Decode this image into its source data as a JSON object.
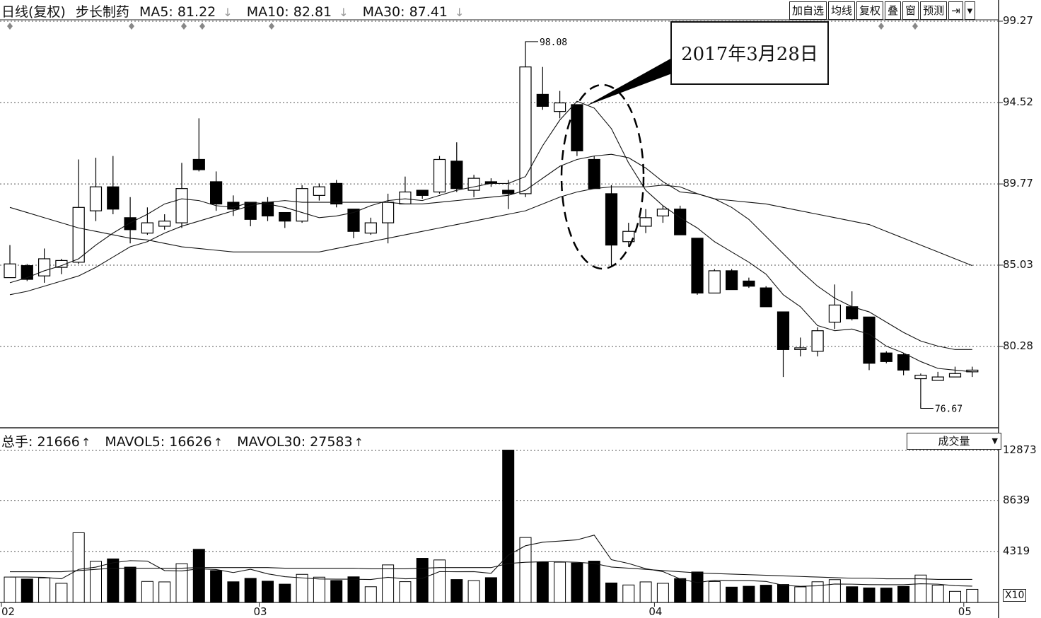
{
  "header": {
    "period": "日线(复权)",
    "stock": "步长制药",
    "ma5_label": "MA5: 81.22",
    "ma10_label": "MA10: 82.81",
    "ma30_label": "MA30: 87.41",
    "arrow": "↓"
  },
  "toolbar": [
    "加自选",
    "均线",
    "复权",
    "叠",
    "窗",
    "预测",
    "⇥",
    "▾"
  ],
  "annotation": {
    "text": "2017年3月28日"
  },
  "volume_header": {
    "total_label": "总手: 21666",
    "mavol5_label": "MAVOL5: 16626",
    "mavol30_label": "MAVOL30: 27583",
    "arrow": "↑",
    "indicator_select": "成交量"
  },
  "chart_data": {
    "type": "candlestick",
    "price_ticks": [
      "99.27",
      "94.52",
      "89.77",
      "85.03",
      "80.28"
    ],
    "price_range": [
      76.0,
      99.27
    ],
    "volume_ticks": [
      "12873",
      "8639",
      "4319"
    ],
    "volume_unit": "X10",
    "volume_range": [
      0,
      12873
    ],
    "x_labels": [
      {
        "index": 0,
        "label": "02"
      },
      {
        "index": 15,
        "label": "03"
      },
      {
        "index": 38,
        "label": "04"
      },
      {
        "index": 56,
        "label": "05"
      }
    ],
    "high_annotation": {
      "index": 30,
      "value": "98.08"
    },
    "low_annotation": {
      "index": 53,
      "value": "76.67"
    },
    "candles": [
      [
        84.3,
        85.1,
        86.2,
        84.4
      ],
      [
        85.0,
        84.2,
        85.1,
        84.1
      ],
      [
        84.4,
        85.4,
        86.0,
        84.0
      ],
      [
        84.9,
        85.3,
        85.4,
        84.5
      ],
      [
        85.2,
        88.4,
        91.2,
        85.1
      ],
      [
        88.2,
        89.6,
        91.3,
        87.6
      ],
      [
        89.6,
        88.3,
        91.4,
        88.0
      ],
      [
        87.8,
        87.1,
        89.0,
        86.3
      ],
      [
        86.9,
        87.5,
        88.4,
        86.8
      ],
      [
        87.3,
        87.6,
        88.0,
        87.1
      ],
      [
        87.5,
        89.5,
        91.0,
        87.2
      ],
      [
        91.2,
        90.6,
        93.6,
        90.5
      ],
      [
        89.9,
        88.6,
        90.5,
        88.2
      ],
      [
        88.7,
        88.3,
        89.1,
        87.9
      ],
      [
        88.7,
        87.7,
        88.7,
        87.3
      ],
      [
        88.7,
        87.9,
        89.0,
        87.6
      ],
      [
        88.1,
        87.6,
        88.1,
        87.2
      ],
      [
        87.6,
        89.5,
        89.7,
        87.5
      ],
      [
        89.1,
        89.6,
        89.8,
        88.8
      ],
      [
        89.8,
        88.6,
        90.0,
        88.4
      ],
      [
        88.3,
        87.0,
        88.3,
        86.6
      ],
      [
        86.9,
        87.5,
        87.8,
        86.8
      ],
      [
        87.5,
        88.7,
        89.2,
        86.3
      ],
      [
        88.6,
        89.3,
        90.2,
        88.6
      ],
      [
        89.4,
        89.1,
        89.4,
        88.9
      ],
      [
        89.3,
        91.2,
        91.4,
        89.2
      ],
      [
        91.1,
        89.5,
        92.2,
        89.3
      ],
      [
        89.4,
        90.1,
        90.3,
        89.0
      ],
      [
        89.9,
        89.8,
        90.1,
        89.6
      ],
      [
        89.4,
        89.2,
        90.0,
        88.3
      ],
      [
        89.2,
        96.6,
        98.08,
        89.0
      ],
      [
        95.0,
        94.3,
        96.6,
        94.1
      ],
      [
        94.0,
        94.5,
        95.2,
        93.6
      ],
      [
        94.4,
        91.7,
        94.4,
        91.4
      ],
      [
        91.2,
        89.5,
        91.4,
        89.5
      ],
      [
        89.2,
        86.2,
        89.7,
        85.0
      ],
      [
        86.4,
        87.0,
        87.5,
        86.1
      ],
      [
        87.3,
        87.8,
        88.3,
        86.9
      ],
      [
        87.9,
        88.3,
        88.5,
        87.5
      ],
      [
        88.3,
        86.8,
        88.5,
        86.8
      ],
      [
        86.6,
        83.4,
        86.6,
        83.3
      ],
      [
        83.4,
        84.7,
        84.8,
        83.4
      ],
      [
        84.7,
        83.6,
        84.8,
        83.6
      ],
      [
        84.1,
        83.8,
        84.3,
        83.7
      ],
      [
        83.7,
        82.6,
        83.8,
        82.6
      ],
      [
        82.3,
        80.1,
        82.3,
        78.5
      ],
      [
        80.1,
        80.2,
        80.8,
        79.7
      ],
      [
        80.0,
        81.2,
        81.4,
        79.7
      ],
      [
        81.7,
        82.7,
        83.9,
        81.3
      ],
      [
        82.6,
        81.9,
        83.5,
        81.8
      ],
      [
        82.0,
        79.3,
        82.0,
        78.9
      ],
      [
        79.9,
        79.4,
        80.0,
        79.3
      ],
      [
        79.8,
        78.9,
        79.9,
        78.6
      ],
      [
        78.4,
        78.6,
        78.7,
        76.67
      ],
      [
        78.3,
        78.5,
        78.8,
        78.3
      ],
      [
        78.5,
        78.7,
        79.1,
        78.5
      ],
      [
        78.8,
        78.9,
        79.1,
        78.5
      ]
    ],
    "ma5": [
      84.0,
      84.3,
      84.7,
      85.0,
      85.4,
      86.2,
      86.9,
      87.5,
      88.0,
      88.6,
      88.9,
      88.8,
      88.5,
      88.4,
      88.7,
      88.6,
      88.4,
      88.1,
      87.8,
      87.9,
      88.1,
      88.5,
      88.8,
      88.9,
      88.8,
      89.1,
      89.4,
      89.6,
      89.8,
      89.8,
      90.2,
      92.0,
      93.5,
      94.6,
      94.2,
      93.0,
      91.0,
      89.4,
      88.5,
      87.8,
      87.2,
      86.4,
      85.8,
      85.2,
      84.5,
      83.3,
      82.6,
      81.5,
      81.2,
      81.3,
      81.0,
      80.3,
      79.9,
      79.4,
      79.0,
      78.9,
      78.8
    ],
    "ma10": [
      83.3,
      83.5,
      83.8,
      84.1,
      84.4,
      84.9,
      85.5,
      86.1,
      86.4,
      86.9,
      87.3,
      87.6,
      87.9,
      88.2,
      88.5,
      88.7,
      88.8,
      88.7,
      88.7,
      88.7,
      88.7,
      88.7,
      88.7,
      88.6,
      88.6,
      88.7,
      88.8,
      88.9,
      89.0,
      89.1,
      89.4,
      90.1,
      90.8,
      91.2,
      91.4,
      91.5,
      91.3,
      90.7,
      89.9,
      89.3,
      89.2,
      88.9,
      88.4,
      87.7,
      86.7,
      85.7,
      84.7,
      83.8,
      83.1,
      82.6,
      82.3,
      81.7,
      81.1,
      80.6,
      80.3,
      80.1,
      80.1
    ],
    "ma30": [
      88.4,
      88.1,
      87.8,
      87.5,
      87.2,
      87.0,
      86.8,
      86.6,
      86.5,
      86.3,
      86.1,
      86.0,
      85.9,
      85.8,
      85.8,
      85.8,
      85.8,
      85.8,
      85.8,
      86.0,
      86.2,
      86.4,
      86.6,
      86.8,
      87.0,
      87.2,
      87.4,
      87.6,
      87.8,
      88.0,
      88.2,
      88.6,
      89.0,
      89.3,
      89.5,
      89.6,
      89.6,
      89.6,
      89.7,
      89.6,
      89.2,
      88.9,
      88.8,
      88.7,
      88.6,
      88.4,
      88.2,
      88.0,
      87.8,
      87.6,
      87.4,
      87.0,
      86.6,
      86.2,
      85.8,
      85.4,
      85.0
    ],
    "volumes": [
      2150,
      1980,
      2080,
      1620,
      5900,
      3480,
      3690,
      2990,
      1780,
      1740,
      3280,
      4500,
      2700,
      1750,
      2040,
      1800,
      1550,
      2380,
      2140,
      1860,
      2170,
      1330,
      3180,
      1760,
      3740,
      3600,
      1940,
      1850,
      2100,
      12900,
      5500,
      3420,
      3410,
      3340,
      3500,
      1650,
      1480,
      1740,
      1620,
      2020,
      2580,
      1770,
      1300,
      1370,
      1460,
      1520,
      1320,
      1750,
      1930,
      1330,
      1230,
      1220,
      1360,
      2320,
      1460,
      940,
      1110
    ],
    "vol_ma5": [
      2150,
      2150,
      2120,
      2000,
      2800,
      2990,
      3360,
      3540,
      3500,
      2700,
      2670,
      2850,
      2790,
      2530,
      2810,
      2420,
      2180,
      2080,
      1990,
      1970,
      1970,
      1940,
      2130,
      2000,
      2040,
      2610,
      2600,
      2610,
      2470,
      4000,
      4800,
      5100,
      5200,
      5300,
      5700,
      3620,
      3300,
      2860,
      2610,
      1990,
      1680,
      1880,
      1850,
      1850,
      1780,
      1450,
      1370,
      1410,
      1560,
      1550,
      1510,
      1500,
      1500,
      1580,
      1550,
      1420,
      1380
    ],
    "vol_ma30": [
      2600,
      2600,
      2600,
      2600,
      2700,
      2800,
      2900,
      2900,
      2900,
      2900,
      2900,
      2950,
      2950,
      2950,
      2950,
      2950,
      2900,
      2900,
      2900,
      2900,
      2900,
      2850,
      2850,
      2850,
      2900,
      2950,
      2950,
      2950,
      2950,
      3300,
      3400,
      3450,
      3450,
      3400,
      3300,
      3000,
      2900,
      2800,
      2700,
      2600,
      2500,
      2450,
      2400,
      2350,
      2300,
      2250,
      2200,
      2150,
      2100,
      2050,
      2050,
      2000,
      2000,
      2000,
      1950,
      1950,
      1950
    ]
  }
}
